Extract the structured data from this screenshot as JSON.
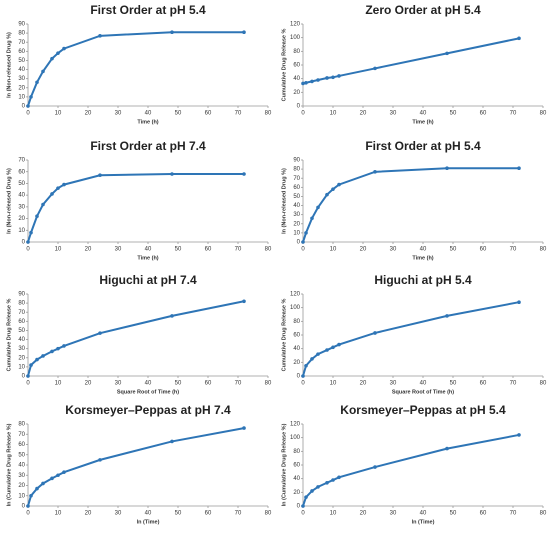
{
  "chart_data": [
    {
      "type": "line",
      "title": "First Order at pH 5.4",
      "xlabel": "Time (h)",
      "ylabel": "ln (Non-released Drug %)",
      "x": [
        0,
        1,
        3,
        5,
        8,
        10,
        12,
        24,
        48,
        72
      ],
      "values": [
        0,
        10,
        26,
        38,
        52,
        58,
        63,
        77,
        81,
        81
      ],
      "color": "#2e75b6",
      "xlim": [
        0,
        80
      ],
      "xticks": [
        0,
        10,
        20,
        30,
        40,
        50,
        60,
        70,
        80
      ],
      "ylim": [
        0,
        90
      ],
      "yticks": [
        0,
        10,
        20,
        30,
        40,
        50,
        60,
        70,
        80,
        90
      ]
    },
    {
      "type": "line",
      "title": "Zero Order at pH 5.4",
      "xlabel": "Time (h)",
      "ylabel": "Cumulative Drug Release %",
      "x": [
        0,
        1,
        3,
        5,
        8,
        10,
        12,
        24,
        48,
        72
      ],
      "values": [
        33,
        34,
        36,
        38,
        41,
        42,
        44,
        55,
        77,
        99
      ],
      "color": "#2e75b6",
      "xlim": [
        0,
        80
      ],
      "xticks": [
        0,
        10,
        20,
        30,
        40,
        50,
        60,
        70,
        80
      ],
      "ylim": [
        0,
        120
      ],
      "yticks": [
        0,
        20,
        40,
        60,
        80,
        100,
        120
      ]
    },
    {
      "type": "line",
      "title": "First Order at pH 7.4",
      "xlabel": "Time (h)",
      "ylabel": "ln (Non-released Drug %)",
      "x": [
        0,
        1,
        3,
        5,
        8,
        10,
        12,
        24,
        48,
        72
      ],
      "values": [
        0,
        8,
        22,
        32,
        41,
        46,
        49,
        57,
        58,
        58
      ],
      "color": "#2e75b6",
      "xlim": [
        0,
        80
      ],
      "xticks": [
        0,
        10,
        20,
        30,
        40,
        50,
        60,
        70,
        80
      ],
      "ylim": [
        0,
        70
      ],
      "yticks": [
        0,
        10,
        20,
        30,
        40,
        50,
        60,
        70
      ]
    },
    {
      "type": "line",
      "title": "First Order at pH 5.4",
      "xlabel": "Time (h)",
      "ylabel": "ln (Non-released Drug %)",
      "x": [
        0,
        1,
        3,
        5,
        8,
        10,
        12,
        24,
        48,
        72
      ],
      "values": [
        0,
        10,
        26,
        38,
        52,
        58,
        63,
        77,
        81,
        81
      ],
      "color": "#2e75b6",
      "xlim": [
        0,
        80
      ],
      "xticks": [
        0,
        10,
        20,
        30,
        40,
        50,
        60,
        70,
        80
      ],
      "ylim": [
        0,
        90
      ],
      "yticks": [
        0,
        10,
        20,
        30,
        40,
        50,
        60,
        70,
        80,
        90
      ]
    },
    {
      "type": "line",
      "title": "Higuchi at pH 7.4",
      "xlabel": "Square Root of Time (h)",
      "ylabel": "Cumulative Drug Release %",
      "x": [
        0,
        1,
        3,
        5,
        8,
        10,
        12,
        24,
        48,
        72
      ],
      "values": [
        0,
        12,
        18,
        22,
        27,
        30,
        33,
        47,
        66,
        82
      ],
      "color": "#2e75b6",
      "xlim": [
        0,
        80
      ],
      "xticks": [
        0,
        10,
        20,
        30,
        40,
        50,
        60,
        70,
        80
      ],
      "ylim": [
        0,
        90
      ],
      "yticks": [
        0,
        10,
        20,
        30,
        40,
        50,
        60,
        70,
        80,
        90
      ]
    },
    {
      "type": "line",
      "title": "Higuchi at pH 5.4",
      "xlabel": "Square Root of Time (h)",
      "ylabel": "Cumulative Drug Release %",
      "x": [
        0,
        1,
        3,
        5,
        8,
        10,
        12,
        24,
        48,
        72
      ],
      "values": [
        0,
        15,
        25,
        32,
        38,
        42,
        46,
        63,
        88,
        108
      ],
      "color": "#2e75b6",
      "xlim": [
        0,
        80
      ],
      "xticks": [
        0,
        10,
        20,
        30,
        40,
        50,
        60,
        70,
        80
      ],
      "ylim": [
        0,
        120
      ],
      "yticks": [
        0,
        20,
        40,
        60,
        80,
        100,
        120
      ]
    },
    {
      "type": "line",
      "title": "Korsmeyer–Peppas at pH 7.4",
      "xlabel": "ln (Time)",
      "ylabel": "ln (Cumulative Drug Release %)",
      "x": [
        0,
        1,
        3,
        5,
        8,
        10,
        12,
        24,
        48,
        72
      ],
      "values": [
        0,
        10,
        17,
        22,
        27,
        30,
        33,
        45,
        63,
        76
      ],
      "color": "#2e75b6",
      "xlim": [
        0,
        80
      ],
      "xticks": [
        0,
        10,
        20,
        30,
        40,
        50,
        60,
        70,
        80
      ],
      "ylim": [
        0,
        80
      ],
      "yticks": [
        0,
        10,
        20,
        30,
        40,
        50,
        60,
        70,
        80
      ]
    },
    {
      "type": "line",
      "title": "Korsmeyer–Peppas at pH 5.4",
      "xlabel": "ln (Time)",
      "ylabel": "ln (Cumulative Drug Release %)",
      "x": [
        0,
        1,
        3,
        5,
        8,
        10,
        12,
        24,
        48,
        72
      ],
      "values": [
        0,
        13,
        22,
        28,
        34,
        38,
        42,
        57,
        84,
        104
      ],
      "color": "#2e75b6",
      "xlim": [
        0,
        80
      ],
      "xticks": [
        0,
        10,
        20,
        30,
        40,
        50,
        60,
        70,
        80
      ],
      "ylim": [
        0,
        120
      ],
      "yticks": [
        0,
        20,
        40,
        60,
        80,
        100,
        120
      ]
    }
  ]
}
